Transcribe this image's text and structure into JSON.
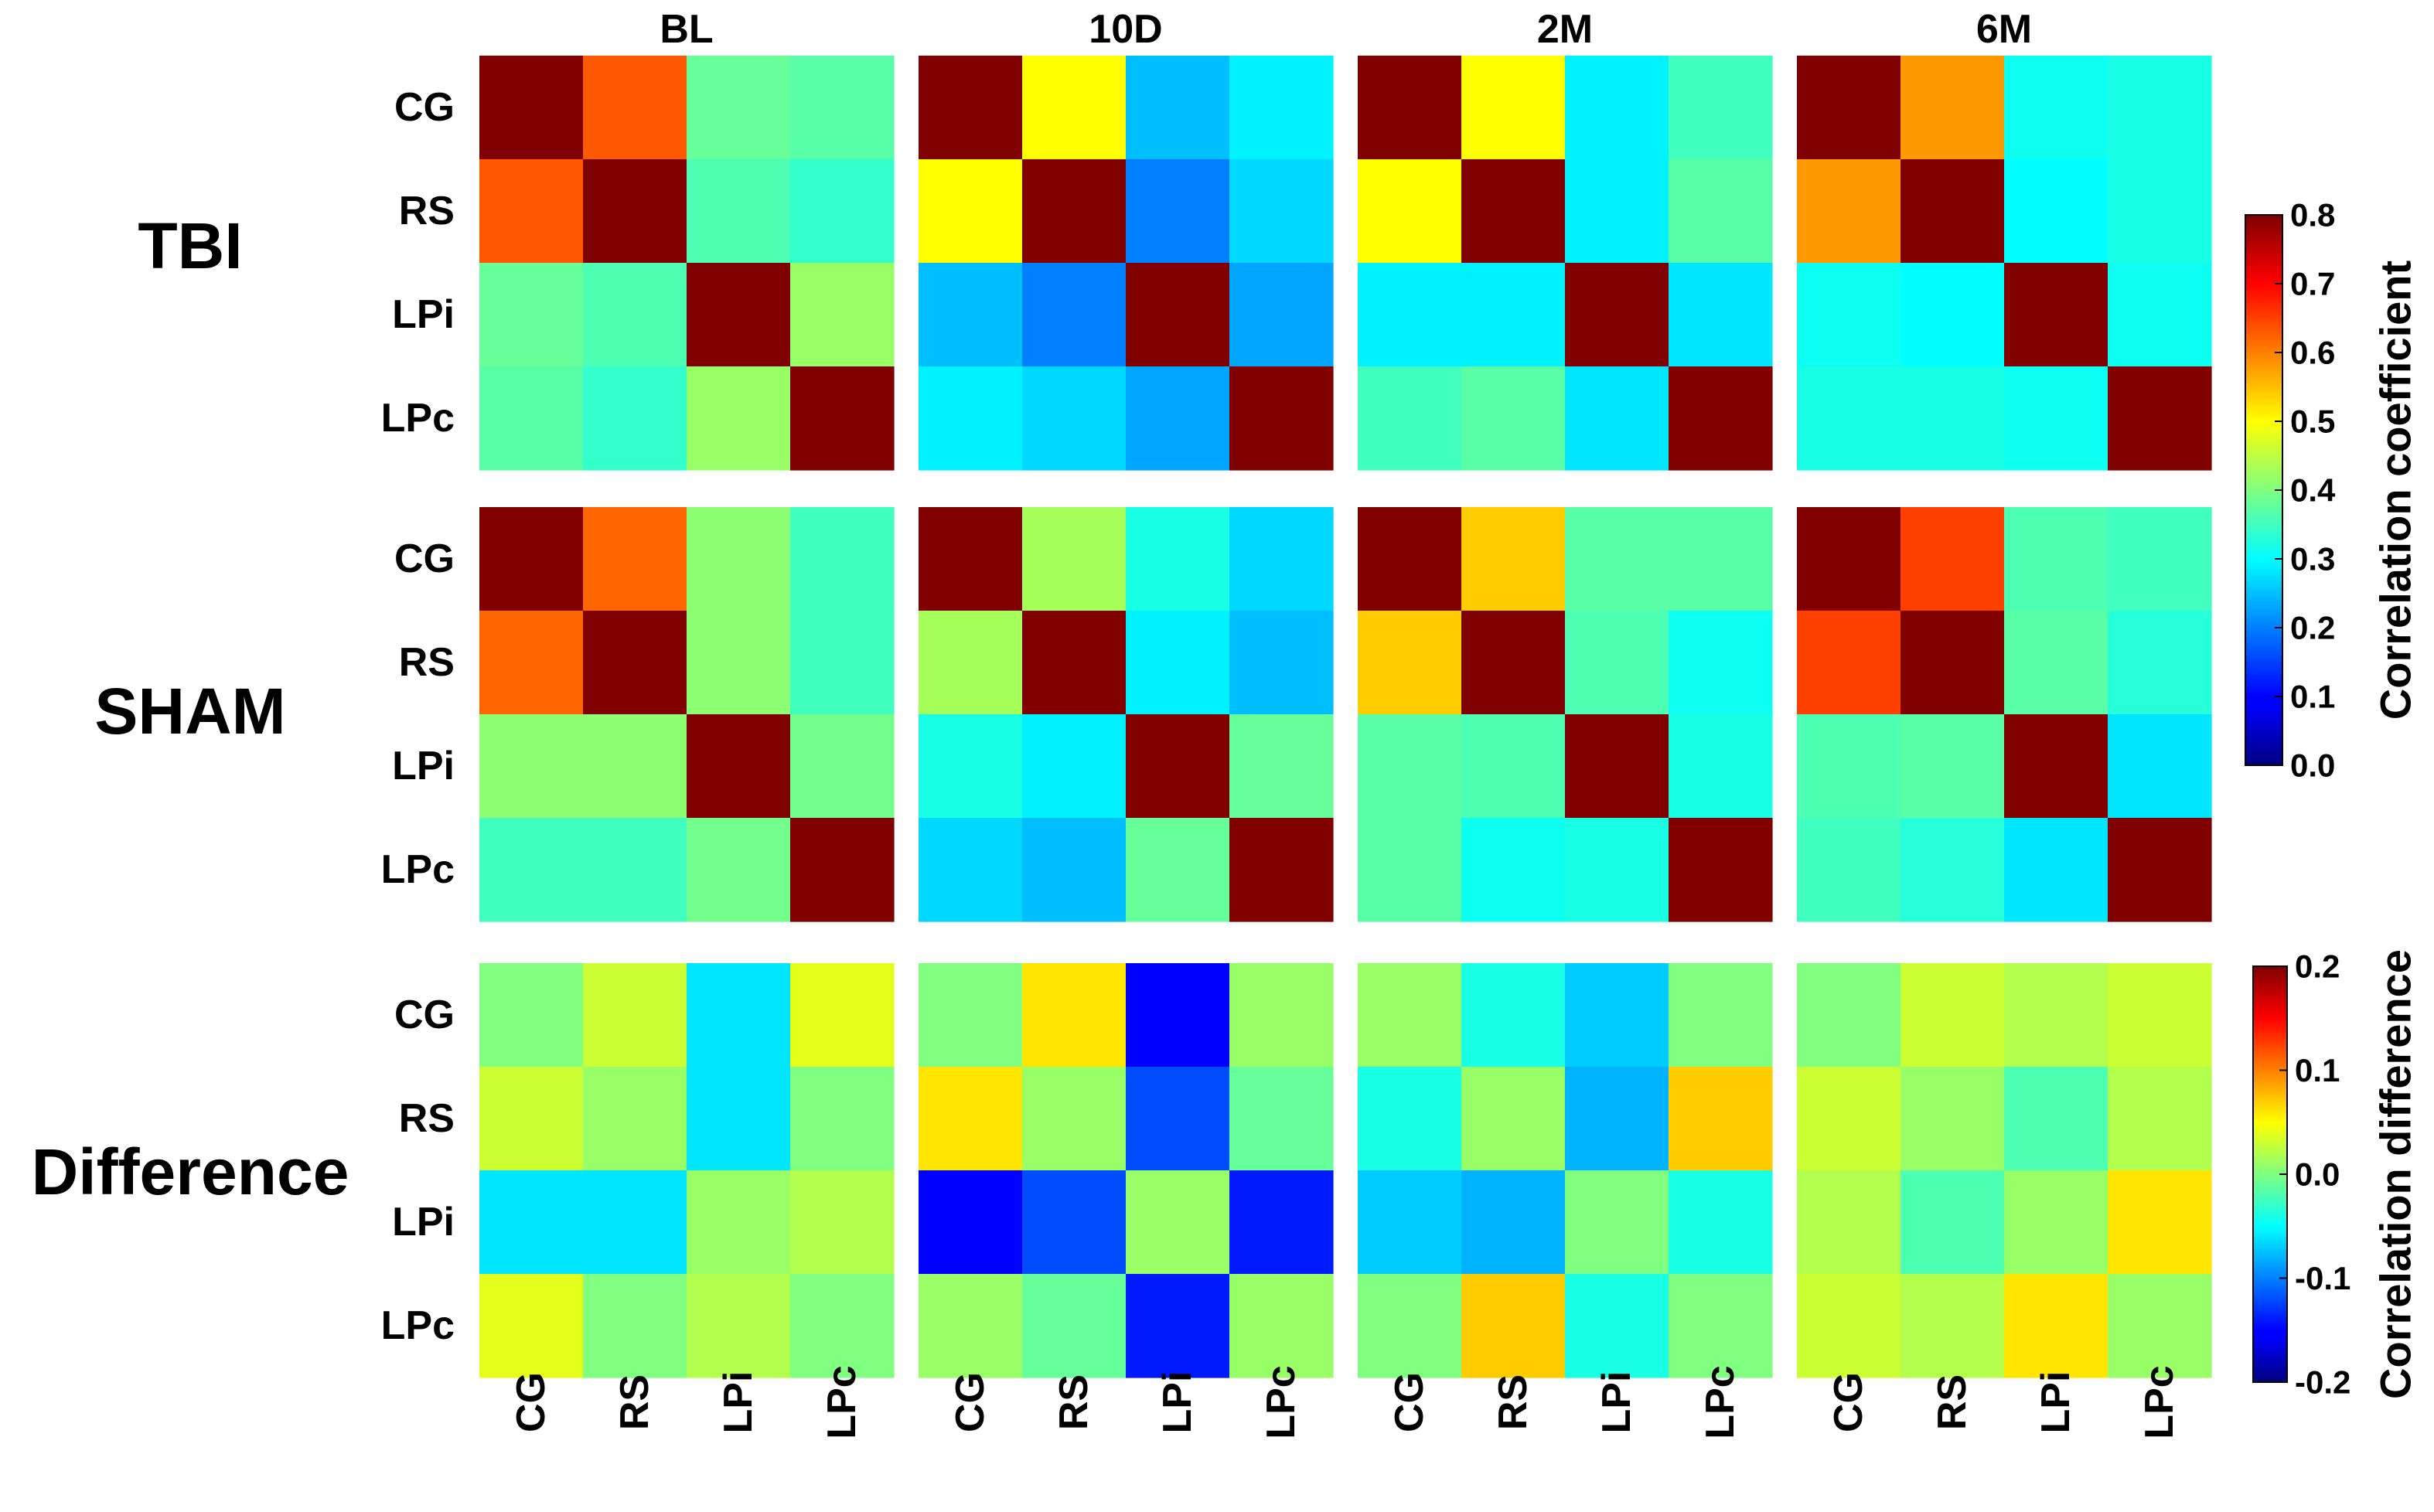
{
  "chart_data": {
    "type": "heatmap",
    "columns": [
      "BL",
      "10D",
      "2M",
      "6M"
    ],
    "rows": [
      "TBI",
      "SHAM",
      "Difference"
    ],
    "regions": [
      "CG",
      "RS",
      "LPi",
      "LPc"
    ],
    "colormap": "jet",
    "colorbars": [
      {
        "label": "Correlation coefficient",
        "range": [
          0.0,
          0.8
        ],
        "ticks": [
          "0.8",
          "0.7",
          "0.6",
          "0.5",
          "0.4",
          "0.3",
          "0.2",
          "0.1",
          "0.0"
        ],
        "applies_to": [
          "TBI",
          "SHAM"
        ]
      },
      {
        "label": "Correlation difference",
        "range": [
          -0.2,
          0.2
        ],
        "ticks": [
          "0.2",
          "0.1",
          "0.0",
          "-0.1",
          "-0.2"
        ],
        "applies_to": [
          "Difference"
        ]
      }
    ],
    "matrices": {
      "TBI": {
        "BL": [
          [
            0.8,
            0.63,
            0.38,
            0.37
          ],
          [
            0.63,
            0.8,
            0.36,
            0.34
          ],
          [
            0.38,
            0.36,
            0.8,
            0.42
          ],
          [
            0.37,
            0.34,
            0.42,
            0.8
          ]
        ],
        "10D": [
          [
            0.8,
            0.5,
            0.25,
            0.29
          ],
          [
            0.5,
            0.8,
            0.2,
            0.27
          ],
          [
            0.25,
            0.2,
            0.8,
            0.23
          ],
          [
            0.29,
            0.27,
            0.23,
            0.8
          ]
        ],
        "2M": [
          [
            0.8,
            0.5,
            0.29,
            0.35
          ],
          [
            0.5,
            0.8,
            0.29,
            0.37
          ],
          [
            0.29,
            0.29,
            0.8,
            0.28
          ],
          [
            0.35,
            0.37,
            0.28,
            0.8
          ]
        ],
        "6M": [
          [
            0.8,
            0.58,
            0.31,
            0.32
          ],
          [
            0.58,
            0.8,
            0.3,
            0.32
          ],
          [
            0.31,
            0.3,
            0.8,
            0.31
          ],
          [
            0.32,
            0.32,
            0.31,
            0.8
          ]
        ]
      },
      "SHAM": {
        "BL": [
          [
            0.8,
            0.62,
            0.41,
            0.35
          ],
          [
            0.62,
            0.8,
            0.41,
            0.35
          ],
          [
            0.41,
            0.41,
            0.8,
            0.39
          ],
          [
            0.35,
            0.35,
            0.39,
            0.8
          ]
        ],
        "10D": [
          [
            0.8,
            0.43,
            0.32,
            0.27
          ],
          [
            0.43,
            0.8,
            0.29,
            0.25
          ],
          [
            0.32,
            0.29,
            0.8,
            0.38
          ],
          [
            0.27,
            0.25,
            0.38,
            0.8
          ]
        ],
        "2M": [
          [
            0.8,
            0.54,
            0.37,
            0.37
          ],
          [
            0.54,
            0.8,
            0.36,
            0.31
          ],
          [
            0.37,
            0.36,
            0.8,
            0.32
          ],
          [
            0.37,
            0.31,
            0.32,
            0.8
          ]
        ],
        "6M": [
          [
            0.8,
            0.65,
            0.36,
            0.35
          ],
          [
            0.65,
            0.8,
            0.37,
            0.33
          ],
          [
            0.36,
            0.37,
            0.8,
            0.28
          ],
          [
            0.35,
            0.33,
            0.28,
            0.8
          ]
        ]
      },
      "Difference": {
        "BL": [
          [
            0.0,
            0.03,
            -0.06,
            0.04
          ],
          [
            0.03,
            0.01,
            -0.06,
            0.0
          ],
          [
            -0.06,
            -0.06,
            0.01,
            0.02
          ],
          [
            0.04,
            0.0,
            0.02,
            0.0
          ]
        ],
        "10D": [
          [
            0.0,
            0.06,
            -0.15,
            0.01
          ],
          [
            0.06,
            0.01,
            -0.12,
            -0.01
          ],
          [
            -0.15,
            -0.12,
            0.01,
            -0.14
          ],
          [
            0.01,
            -0.01,
            -0.14,
            0.01
          ]
        ],
        "2M": [
          [
            0.01,
            -0.04,
            -0.07,
            0.0
          ],
          [
            -0.04,
            0.01,
            -0.08,
            0.07
          ],
          [
            -0.07,
            -0.08,
            0.0,
            -0.04
          ],
          [
            0.0,
            0.07,
            -0.04,
            0.0
          ]
        ],
        "6M": [
          [
            0.0,
            0.03,
            0.02,
            0.03
          ],
          [
            0.03,
            0.01,
            -0.02,
            0.02
          ],
          [
            0.02,
            -0.02,
            0.01,
            0.06
          ],
          [
            0.03,
            0.02,
            0.06,
            0.01
          ]
        ]
      }
    }
  }
}
